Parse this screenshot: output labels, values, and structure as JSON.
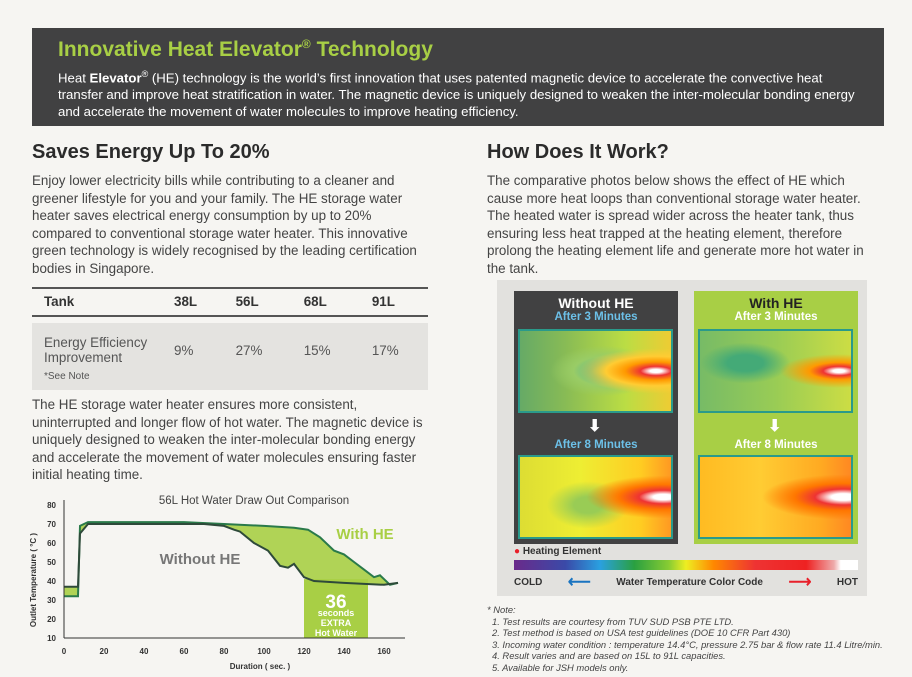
{
  "header": {
    "title": "Innovative Heat Elevator",
    "title_mark": "®",
    "title_suffix": " Technology",
    "body_pre": "Heat ",
    "body_bold": "Elevator",
    "body_mark": "®",
    "body_rest": " (HE) technology is the world’s first innovation that uses patented magnetic device to accelerate the convective heat transfer and improve heat stratification in water. The magnetic device is uniquely designed to weaken the inter-molecular bonding energy and accelerate the movement of water molecules to improve heating efficiency."
  },
  "left": {
    "heading": "Saves Energy Up To 20%",
    "intro": "Enjoy lower electricity bills while contributing to a cleaner and greener lifestyle for you and your family. The HE storage water heater saves electrical energy consumption by up to 20% compared to conventional storage water heater. This innovative green technology is widely recognised by the leading certification bodies in Singapore.",
    "table": {
      "headers": [
        "Tank",
        "38L",
        "56L",
        "68L",
        "91L"
      ],
      "row_label": "Energy Efficiency Improvement",
      "row_note": "*See Note",
      "values": [
        "9%",
        "27%",
        "15%",
        "17%"
      ]
    },
    "body2": "The HE storage water heater ensures more consistent, uninterrupted and longer flow of hot water. The magnetic device is uniquely designed to weaken the inter-molecular bonding energy and accelerate the movement of water molecules ensuring faster initial heating time."
  },
  "chart_data": {
    "type": "line",
    "title": "56L Hot Water Draw Out Comparison",
    "xlabel": "Duration ( sec. )",
    "ylabel": "Outlet Temperature ( °C )",
    "xlim": [
      0,
      167
    ],
    "ylim": [
      10,
      80
    ],
    "xticks": [
      "0",
      "20",
      "40",
      "60",
      "80",
      "100",
      "120",
      "140",
      "160"
    ],
    "yticks": [
      "10",
      "20",
      "30",
      "40",
      "50",
      "60",
      "70",
      "80"
    ],
    "grid": false,
    "series": [
      {
        "name": "With HE",
        "color": "#a8cf45",
        "x": [
          0,
          7,
          8,
          12,
          40,
          60,
          80,
          100,
          115,
          122,
          128,
          135,
          140,
          145,
          150,
          155,
          158,
          163,
          167
        ],
        "y": [
          32,
          32,
          69,
          71,
          71,
          71,
          70,
          69,
          68,
          67,
          63,
          56,
          54,
          50,
          46,
          42,
          43,
          38,
          39
        ]
      },
      {
        "name": "Without HE",
        "color": "#2e5e44",
        "x": [
          0,
          7,
          8,
          12,
          40,
          70,
          80,
          85,
          88,
          95,
          102,
          108,
          112,
          115,
          120,
          125,
          140,
          160,
          167
        ],
        "y": [
          37,
          37,
          65,
          70,
          70,
          70,
          69,
          67,
          66,
          60,
          56,
          48,
          47,
          49,
          42,
          40,
          39,
          38,
          39
        ]
      }
    ],
    "annotation": {
      "number": "36",
      "lines": [
        "seconds",
        "EXTRA",
        "Hot Water"
      ],
      "x_range": [
        120,
        152
      ]
    }
  },
  "right": {
    "heading": "How Does It Work?",
    "intro": "The comparative photos below shows the effect of HE which cause more heat loops than conventional storage water heater. The heated water is spread wider across the heater tank, thus ensuring less heat trapped at the heating element, therefore prolong the heating element life and generate more hot water in the tank.",
    "without": {
      "title": "Without HE",
      "after3": "After 3 Minutes",
      "after8": "After 8 Minutes"
    },
    "with": {
      "title": "With HE",
      "after3": "After 3 Minutes",
      "after8": "After 8 Minutes"
    },
    "legend": {
      "heating": "Heating Element",
      "cold": "COLD",
      "code": "Water Temperature Color Code",
      "hot": "HOT"
    },
    "colors": {
      "dark": "#414142",
      "green": "#a8cf45",
      "element": "#e8202a"
    }
  },
  "notes": {
    "title": "* Note:",
    "items": [
      "1. Test results are courtesy from TUV SUD PSB PTE LTD.",
      "2. Test method is based on USA test guidelines (DOE 10 CFR Part 430)",
      "3. Incoming water condition : temperature 14.4°C, pressure 2.75 bar & flow rate 11.4 Litre/min.",
      "4. Result varies and are based on 15L to 91L capacities.",
      "5. Available for JSH models only."
    ]
  }
}
